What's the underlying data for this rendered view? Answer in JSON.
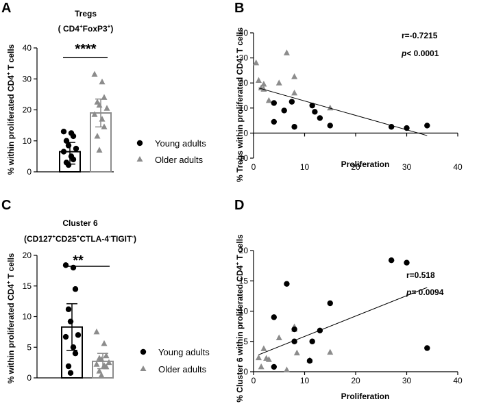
{
  "colors": {
    "young": "#000000",
    "older": "#8c8c8c",
    "axis": "#000000"
  },
  "panels": {
    "A": {
      "label": "A",
      "title1": "Tregs",
      "title2": "( CD4",
      "title2b": "+",
      "title2c": "FoxP3",
      "title2d": "+",
      "title2e": ")",
      "ylabel": "% within proliferated CD4",
      "ylabel_sup": "+",
      "ylabel_end": " T cells",
      "sig": "****"
    },
    "B": {
      "label": "B",
      "ylabel": "% Tregs within proliferated CD4",
      "ylabel_sup": "+",
      "ylabel_end": " T cells",
      "xlabel": "Proliferation",
      "r_text": "r=-0.7215",
      "p_italic": "p",
      "p_rest": "< 0.0001"
    },
    "C": {
      "label": "C",
      "title1": "Cluster 6",
      "title2": "(CD127",
      "title2b": "+",
      "title2c": "CD25",
      "title2d": "+",
      "title2e": "CTLA-4",
      "title2f": "-",
      "title2g": "TIGIT",
      "title2h": "-",
      "title2i": ")",
      "ylabel": "% within proliferated CD4",
      "ylabel_sup": "+",
      "ylabel_end": " T cells",
      "sig": "**"
    },
    "D": {
      "label": "D",
      "ylabel": "% Cluster 6 within proliferated CD4",
      "ylabel_sup": "+",
      "ylabel_end": " T cells",
      "xlabel": "Proliferation",
      "r_text": "r=0.518",
      "p_italic": "p",
      "p_rest": "= 0.0094"
    }
  },
  "legend": {
    "young": "Young adults",
    "older": "Older adults"
  },
  "chart_data": [
    {
      "id": "A",
      "type": "bar",
      "title": "Tregs (CD4+FoxP3+)",
      "ylabel": "% within proliferated CD4+ T cells",
      "ylim": [
        0,
        40
      ],
      "yticks": [
        0,
        10,
        20,
        30,
        40
      ],
      "categories": [
        "Young adults",
        "Older adults"
      ],
      "means": [
        6.5,
        19
      ],
      "sd_low": [
        2.5,
        14.5
      ],
      "sd_high": [
        9.5,
        23.5
      ],
      "points": [
        [
          13,
          12.5,
          11.5,
          10,
          8.5,
          7.5,
          6.5,
          5,
          4,
          3,
          2.2
        ],
        [
          31.5,
          29,
          24,
          22.5,
          21.5,
          20.5,
          18.5,
          17,
          14.5,
          11.5,
          7
        ]
      ]
    },
    {
      "id": "B",
      "type": "scatter",
      "xlabel": "Proliferation",
      "ylabel": "% Tregs within proliferated CD4+ T cells",
      "xlim": [
        0,
        40
      ],
      "ylim": [
        -10,
        40
      ],
      "xticks": [
        0,
        10,
        20,
        30,
        40
      ],
      "yticks": [
        -10,
        0,
        10,
        20,
        30,
        40
      ],
      "young": [
        [
          4,
          12
        ],
        [
          4,
          4.5
        ],
        [
          6,
          9
        ],
        [
          7.5,
          12.5
        ],
        [
          8,
          2.5
        ],
        [
          11.5,
          11
        ],
        [
          12,
          8.5
        ],
        [
          13,
          6
        ],
        [
          15,
          3
        ],
        [
          27,
          2.5
        ],
        [
          30,
          2
        ],
        [
          34,
          3
        ]
      ],
      "older": [
        [
          0.5,
          28
        ],
        [
          1,
          21
        ],
        [
          1.5,
          18
        ],
        [
          2,
          19.5
        ],
        [
          2,
          17.5
        ],
        [
          3,
          13
        ],
        [
          5,
          20
        ],
        [
          6.5,
          32
        ],
        [
          8,
          22.5
        ],
        [
          8,
          16
        ],
        [
          15,
          10
        ]
      ],
      "fit": [
        [
          1,
          18
        ],
        [
          34,
          -1
        ]
      ],
      "r": -0.7215,
      "p": "< 0.0001"
    },
    {
      "id": "C",
      "type": "bar",
      "title": "Cluster 6 (CD127+CD25+CTLA-4-TIGIT-)",
      "ylabel": "% within proliferated CD4+ T cells",
      "ylim": [
        0,
        20
      ],
      "yticks": [
        0,
        5,
        10,
        15,
        20
      ],
      "categories": [
        "Young adults",
        "Older adults"
      ],
      "means": [
        8.3,
        2.7
      ],
      "sd_low": [
        4.5,
        1.5
      ],
      "sd_high": [
        12.1,
        4.0
      ],
      "points": [
        [
          18.4,
          18.0,
          14.5,
          11.2,
          9.2,
          7.0,
          6.7,
          5.0,
          4.0,
          1.9,
          0.8
        ],
        [
          7.5,
          5.6,
          3.6,
          3.2,
          3.0,
          2.5,
          2.2,
          2.0,
          1.8,
          1.1,
          0.4
        ]
      ]
    },
    {
      "id": "D",
      "type": "scatter",
      "xlabel": "Proliferation",
      "ylabel": "% Cluster 6 within proliferated CD4+ T cells",
      "xlim": [
        0,
        40
      ],
      "ylim": [
        0,
        20
      ],
      "xticks": [
        0,
        10,
        20,
        30,
        40
      ],
      "yticks": [
        0,
        5,
        10,
        15,
        20
      ],
      "young": [
        [
          4,
          9
        ],
        [
          4,
          0.8
        ],
        [
          6.5,
          14.5
        ],
        [
          8,
          5
        ],
        [
          8,
          7
        ],
        [
          11,
          1.8
        ],
        [
          11.5,
          5
        ],
        [
          13,
          6.8
        ],
        [
          15,
          11.3
        ],
        [
          27,
          18.4
        ],
        [
          30,
          18
        ],
        [
          34,
          3.9
        ]
      ],
      "older": [
        [
          1,
          2.3
        ],
        [
          1.5,
          0.8
        ],
        [
          2,
          3.8
        ],
        [
          2.5,
          2.2
        ],
        [
          3,
          2
        ],
        [
          5,
          5.6
        ],
        [
          6.5,
          0.3
        ],
        [
          8,
          7.4
        ],
        [
          8,
          7
        ],
        [
          8.5,
          3.1
        ],
        [
          11,
          1.9
        ],
        [
          15,
          3.2
        ]
      ],
      "fit": [
        [
          1,
          2.8
        ],
        [
          34,
          13.9
        ]
      ],
      "r": 0.518,
      "p": "= 0.0094"
    }
  ]
}
